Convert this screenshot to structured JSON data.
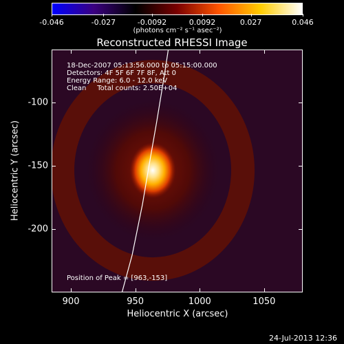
{
  "chart_data": {
    "type": "heatmap",
    "title": "Reconstructed RHESSI Image",
    "xlabel": "Heliocentric X (arcsec)",
    "ylabel": "Heliocentric Y (arcsec)",
    "xlim": [
      885,
      1080
    ],
    "ylim": [
      -250,
      -58
    ],
    "xticks": [
      "900",
      "950",
      "1000",
      "1050"
    ],
    "xtick_values": [
      900,
      950,
      1000,
      1050
    ],
    "yticks": [
      "-100",
      "-150",
      "-200"
    ],
    "ytick_values": [
      -100,
      -150,
      -200
    ],
    "colorbar": {
      "labels": [
        "-0.046",
        "-0.027",
        "-0.0092",
        "0.0092",
        "0.027",
        "0.046"
      ],
      "values": [
        -0.046,
        -0.027,
        -0.0092,
        0.0092,
        0.027,
        0.046
      ],
      "range": [
        -0.046,
        0.046
      ],
      "unit": "(photons cm⁻² s⁻¹ asec⁻²)",
      "colors": [
        "#0000ff",
        "#3b0080",
        "#000000",
        "#7a0000",
        "#ff5500",
        "#ffcc00",
        "#ffffff"
      ]
    },
    "peak": {
      "x": 963,
      "y": -153
    },
    "limb_curve": [
      [
        939,
        -250
      ],
      [
        947,
        -220
      ],
      [
        955,
        -180
      ],
      [
        960,
        -150
      ],
      [
        966,
        -115
      ],
      [
        972,
        -78
      ],
      [
        975,
        -58
      ]
    ],
    "annotations": {
      "time_range": "18-Dec-2007 05:13:56.000 to 05:15:00.000",
      "detectors": "Detectors: 4F 5F 6F 7F 8F, Att 0",
      "energy": "Energy Range: 6.0 - 12.0 keV",
      "clean": "Clean     Total counts: 2.50E+04",
      "peak_text": "Position of Peak = [963,-153]"
    }
  },
  "timestamp": "24-Jul-2013 12:36"
}
